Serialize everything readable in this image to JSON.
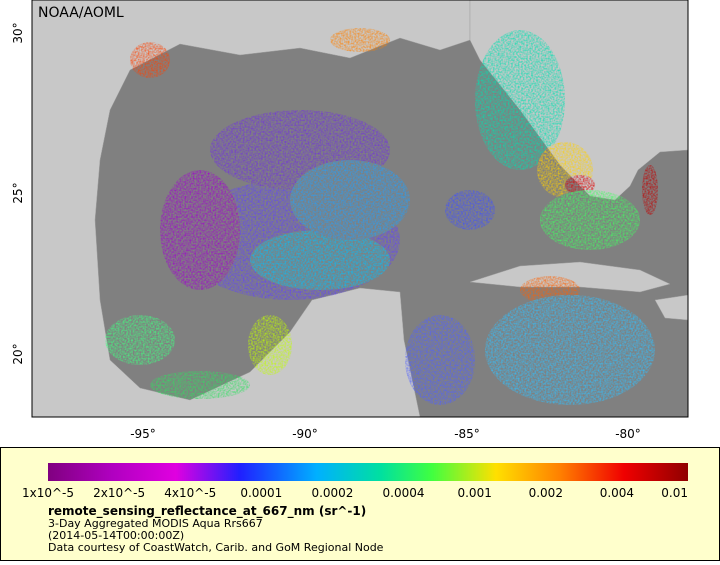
{
  "map": {
    "credit": "NOAA/AOML",
    "lat_ticks": [
      "30°",
      "25°",
      "20°"
    ],
    "lon_ticks": [
      "-95°",
      "-90°",
      "-85°",
      "-80°"
    ]
  },
  "legend": {
    "colorbar_ticks": [
      "1x10^-5",
      "2x10^-5",
      "4x10^-5",
      "0.0001",
      "0.0002",
      "0.0004",
      "0.001",
      "0.002",
      "0.004",
      "0.01"
    ],
    "title": "remote_sensing_reflectance_at_667_nm (sr^-1)",
    "lines": [
      "3-Day Aggregated MODIS Aqua Rrs667",
      "(2014-05-14T00:00:00Z)",
      "Data courtesy of CoastWatch, Carib. and GoM Regional Node"
    ]
  }
}
